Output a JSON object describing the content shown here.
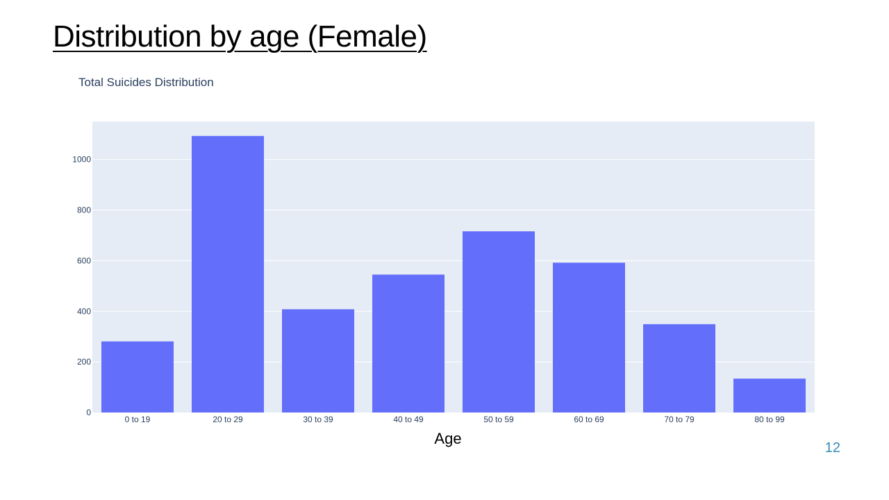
{
  "slide": {
    "title": "Distribution by age (Female)",
    "page_number": "12"
  },
  "colors": {
    "bar": "#636efa",
    "plot_bg": "#e5ecf6",
    "grid": "#ffffff",
    "text": "#2a3f5f"
  },
  "chart_data": {
    "type": "bar",
    "title": "Total Suicides Distribution",
    "xlabel": "Age",
    "ylabel": "",
    "categories": [
      "0 to 19",
      "20 to 29",
      "30 to 39",
      "40 to 49",
      "50 to 59",
      "60 to 69",
      "70 to 79",
      "80 to 99"
    ],
    "values": [
      281,
      1093,
      408,
      545,
      716,
      592,
      349,
      134
    ],
    "ylim": [
      0,
      1150
    ],
    "yticks": [
      0,
      200,
      400,
      600,
      800,
      1000
    ],
    "grid": true,
    "legend": "none"
  }
}
